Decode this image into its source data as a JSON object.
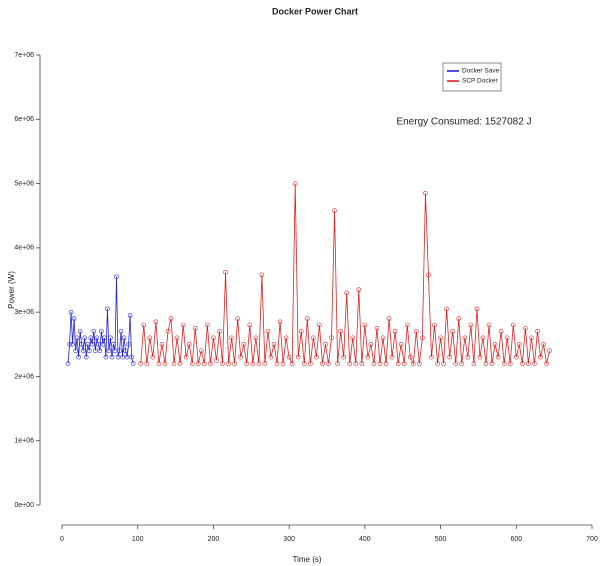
{
  "chart_data": {
    "type": "line",
    "title": "Docker Power Chart",
    "xlabel": "Time (s)",
    "ylabel": "Power (W)",
    "annotation": "Energy Consumed: 1527082 J",
    "xlim": [
      0,
      700
    ],
    "xticks": [
      0,
      100,
      200,
      300,
      400,
      500,
      600,
      700
    ],
    "ylim": [
      0,
      7000000.0
    ],
    "yticks": [
      {
        "value": 0,
        "label": "0e+00"
      },
      {
        "value": 1000000.0,
        "label": "1e+06"
      },
      {
        "value": 2000000.0,
        "label": "2e+06"
      },
      {
        "value": 3000000.0,
        "label": "3e+06"
      },
      {
        "value": 4000000.0,
        "label": "4e+06"
      },
      {
        "value": 5000000.0,
        "label": "5e+06"
      },
      {
        "value": 6000000.0,
        "label": "6e+06"
      },
      {
        "value": 7000000.0,
        "label": "7e+06"
      }
    ],
    "grid": false,
    "legend": "upper right",
    "series": [
      {
        "name": "Docker Save",
        "color": "#2222dd",
        "x": [
          8,
          10,
          12,
          14,
          16,
          18,
          20,
          22,
          24,
          26,
          28,
          30,
          32,
          34,
          36,
          38,
          40,
          42,
          44,
          46,
          48,
          50,
          52,
          54,
          56,
          58,
          60,
          62,
          64,
          66,
          68,
          70,
          72,
          74,
          76,
          78,
          80,
          82,
          84,
          86,
          88,
          90,
          92,
          94
        ],
        "values": [
          2200000.0,
          2500000.0,
          3000000.0,
          2500000.0,
          2900000.0,
          2400000.0,
          2600000.0,
          2300000.0,
          2700000.0,
          2500000.0,
          2400000.0,
          2600000.0,
          2300000.0,
          2500000.0,
          2400000.0,
          2600000.0,
          2500000.0,
          2700000.0,
          2400000.0,
          2600000.0,
          2500000.0,
          2400000.0,
          2700000.0,
          2500000.0,
          2600000.0,
          2300000.0,
          3050000.0,
          2400000.0,
          2600000.0,
          2300000.0,
          2500000.0,
          2400000.0,
          3550000.0,
          2300000.0,
          2400000.0,
          2700000.0,
          2300000.0,
          2600000.0,
          2400000.0,
          2300000.0,
          2500000.0,
          2950000.0,
          2300000.0,
          2200000.0
        ]
      },
      {
        "name": "SCP Docker",
        "color": "#dd2222",
        "x": [
          104,
          108,
          112,
          116,
          120,
          124,
          128,
          132,
          136,
          140,
          144,
          148,
          152,
          156,
          160,
          164,
          168,
          172,
          176,
          180,
          184,
          188,
          192,
          196,
          200,
          204,
          208,
          212,
          216,
          220,
          224,
          228,
          232,
          236,
          240,
          244,
          248,
          252,
          256,
          260,
          264,
          268,
          272,
          276,
          280,
          284,
          288,
          292,
          296,
          300,
          304,
          308,
          312,
          316,
          320,
          324,
          328,
          332,
          336,
          340,
          344,
          348,
          352,
          356,
          360,
          364,
          368,
          372,
          376,
          380,
          384,
          388,
          392,
          396,
          400,
          404,
          408,
          412,
          416,
          420,
          424,
          428,
          432,
          436,
          440,
          444,
          448,
          452,
          456,
          460,
          464,
          468,
          472,
          476,
          480,
          484,
          488,
          492,
          496,
          500,
          504,
          508,
          512,
          516,
          520,
          524,
          528,
          532,
          536,
          540,
          544,
          548,
          552,
          556,
          560,
          564,
          568,
          572,
          576,
          580,
          584,
          588,
          592,
          596,
          600,
          604,
          608,
          612,
          616,
          620,
          624,
          628,
          632,
          636,
          640,
          644
        ],
        "values": [
          2200000.0,
          2800000.0,
          2200000.0,
          2600000.0,
          2300000.0,
          2850000.0,
          2200000.0,
          2500000.0,
          2200000.0,
          2700000.0,
          2900000.0,
          2200000.0,
          2600000.0,
          2200000.0,
          2800000.0,
          2300000.0,
          2500000.0,
          2200000.0,
          2750000.0,
          2200000.0,
          2400000.0,
          2200000.0,
          2800000.0,
          2200000.0,
          2600000.0,
          2250000.0,
          2700000.0,
          2200000.0,
          3620000.0,
          2200000.0,
          2600000.0,
          2200000.0,
          2900000.0,
          2300000.0,
          2500000.0,
          2200000.0,
          2800000.0,
          2200000.0,
          2600000.0,
          2200000.0,
          3580000.0,
          2200000.0,
          2700000.0,
          2300000.0,
          2500000.0,
          2200000.0,
          2850000.0,
          2200000.0,
          2600000.0,
          2300000.0,
          2200000.0,
          5000000.0,
          2300000.0,
          2700000.0,
          2200000.0,
          2900000.0,
          2200000.0,
          2600000.0,
          2300000.0,
          2800000.0,
          2200000.0,
          2500000.0,
          2200000.0,
          2600000.0,
          4580000.0,
          2200000.0,
          2700000.0,
          2300000.0,
          3300000.0,
          2200000.0,
          2600000.0,
          2200000.0,
          3350000.0,
          2200000.0,
          2800000.0,
          2300000.0,
          2500000.0,
          2200000.0,
          2750000.0,
          2200000.0,
          2600000.0,
          2200000.0,
          2900000.0,
          2300000.0,
          2700000.0,
          2200000.0,
          2500000.0,
          2200000.0,
          2800000.0,
          2300000.0,
          2200000.0,
          2700000.0,
          2200000.0,
          2600000.0,
          4850000.0,
          3580000.0,
          2300000.0,
          2800000.0,
          2200000.0,
          2600000.0,
          2200000.0,
          3050000.0,
          2300000.0,
          2700000.0,
          2200000.0,
          2900000.0,
          2200000.0,
          2600000.0,
          2300000.0,
          2800000.0,
          2200000.0,
          3050000.0,
          2300000.0,
          2600000.0,
          2200000.0,
          2800000.0,
          2200000.0,
          2500000.0,
          2300000.0,
          2700000.0,
          2200000.0,
          2600000.0,
          2200000.0,
          2800000.0,
          2300000.0,
          2500000.0,
          2200000.0,
          2750000.0,
          2200000.0,
          2600000.0,
          2200000.0,
          2700000.0,
          2300000.0,
          2500000.0,
          2200000.0,
          2400000.0
        ]
      }
    ]
  }
}
